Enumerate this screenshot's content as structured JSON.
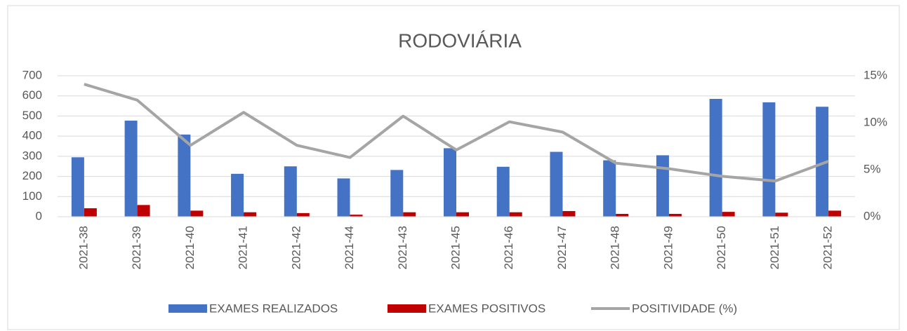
{
  "chart_data": {
    "type": "bar_line",
    "title": "RODOVIÁRIA",
    "categories": [
      "2021-38",
      "2021-39",
      "2021-40",
      "2021-41",
      "2021-42",
      "2021-44",
      "2021-43",
      "2021-45",
      "2021-46",
      "2021-47",
      "2021-48",
      "2021-49",
      "2021-50",
      "2021-51",
      "2021-52"
    ],
    "series": [
      {
        "name": "EXAMES REALIZADOS",
        "color": "#4472c4",
        "type": "bar",
        "values": [
          295,
          477,
          408,
          213,
          250,
          190,
          232,
          340,
          248,
          322,
          280,
          305,
          585,
          568,
          546
        ]
      },
      {
        "name": "EXAMES POSITIVOS",
        "color": "#c00000",
        "type": "bar",
        "values": [
          42,
          58,
          30,
          22,
          18,
          10,
          22,
          22,
          22,
          28,
          14,
          14,
          24,
          20,
          30
        ]
      },
      {
        "name": "POSITIVIDADE (%)",
        "color": "#a5a5a5",
        "type": "line",
        "axis": "y2",
        "values": [
          14.1,
          12.4,
          7.6,
          11.1,
          7.6,
          6.3,
          10.7,
          7.1,
          10.1,
          9.0,
          5.7,
          5.1,
          4.3,
          3.8,
          5.9
        ]
      }
    ],
    "ylim": [
      0,
      700
    ],
    "yticks": [
      0,
      100,
      200,
      300,
      400,
      500,
      600,
      700
    ],
    "y2lim": [
      0,
      15
    ],
    "y2ticks": [
      {
        "value": 0,
        "label": "0%"
      },
      {
        "value": 5,
        "label": "5%"
      },
      {
        "value": 10,
        "label": "10%"
      },
      {
        "value": 15,
        "label": "15%"
      }
    ],
    "grid": true
  }
}
